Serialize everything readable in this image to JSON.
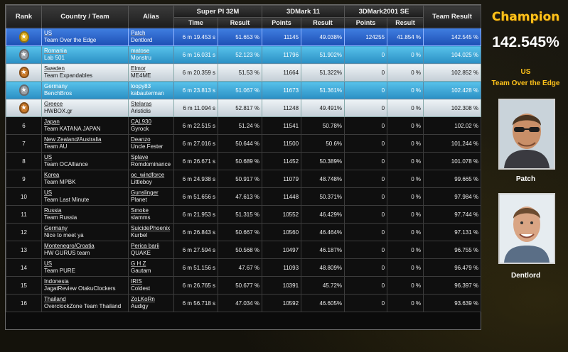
{
  "headers": {
    "rank": "Rank",
    "country_team": "Country / Team",
    "alias": "Alias",
    "superpi": "Super PI 32M",
    "mark11": "3DMark 11",
    "mark2001": "3DMark2001 SE",
    "team_result": "Team Result",
    "sub": {
      "time": "Time",
      "result": "Result",
      "points": "Points",
      "result2": "Result",
      "points2": "Points",
      "result3": "Result"
    }
  },
  "rows": [
    {
      "rank": "",
      "medal": "gold",
      "country": "US",
      "team": "Team Over the Edge",
      "alias1": "Patch",
      "alias2": "Dentlord",
      "time": "6 m 19.453 s",
      "spi_result": "51.653 %",
      "m11_points": "11145",
      "m11_result": "49.038%",
      "m01_points": "124255",
      "m01_result": "41.854 %",
      "team_result": "142.545 %"
    },
    {
      "rank": "",
      "medal": "silver",
      "country": "Romania",
      "team": "Lab 501",
      "alias1": "matose",
      "alias2": "Monstru",
      "time": "6 m 16.031 s",
      "spi_result": "52.123 %",
      "m11_points": "11796",
      "m11_result": "51.902%",
      "m01_points": "0",
      "m01_result": "0 %",
      "team_result": "104.025 %"
    },
    {
      "rank": "",
      "medal": "bronze",
      "country": "Sweden",
      "team": "Team Expandables",
      "alias1": "Elmor",
      "alias2": "ME4ME",
      "time": "6 m 20.359 s",
      "spi_result": "51.53 %",
      "m11_points": "11664",
      "m11_result": "51.322%",
      "m01_points": "0",
      "m01_result": "0 %",
      "team_result": "102.852 %"
    },
    {
      "rank": "",
      "medal": "silver",
      "country": "Germany",
      "team": "BenchBros",
      "alias1": "loopy83",
      "alias2": "kabauterman",
      "time": "6 m 23.813 s",
      "spi_result": "51.067 %",
      "m11_points": "11673",
      "m11_result": "51.361%",
      "m01_points": "0",
      "m01_result": "0 %",
      "team_result": "102.428 %"
    },
    {
      "rank": "",
      "medal": "bronze",
      "country": "Greece",
      "team": "HWBOX.gr",
      "alias1": "Stelaras",
      "alias2": "Aristidis",
      "time": "6 m 11.094 s",
      "spi_result": "52.817 %",
      "m11_points": "11248",
      "m11_result": "49.491%",
      "m01_points": "0",
      "m01_result": "0 %",
      "team_result": "102.308 %"
    },
    {
      "rank": "6",
      "medal": "",
      "country": "Japan",
      "team": "Team KATANA JAPAN",
      "alias1": "CAL930",
      "alias2": "Gyrock",
      "time": "6 m 22.515 s",
      "spi_result": "51.24 %",
      "m11_points": "11541",
      "m11_result": "50.78%",
      "m01_points": "0",
      "m01_result": "0 %",
      "team_result": "102.02 %"
    },
    {
      "rank": "7",
      "medal": "",
      "country": "New Zealand/Australia",
      "team": "Team AU",
      "alias1": "Deanzo",
      "alias2": "Uncle.Fester",
      "time": "6 m 27.016 s",
      "spi_result": "50.644 %",
      "m11_points": "11500",
      "m11_result": "50.6%",
      "m01_points": "0",
      "m01_result": "0 %",
      "team_result": "101.244 %"
    },
    {
      "rank": "8",
      "medal": "",
      "country": "US",
      "team": "Team OCAlliance",
      "alias1": "Splave",
      "alias2": "Romdominance",
      "time": "6 m 26.671 s",
      "spi_result": "50.689 %",
      "m11_points": "11452",
      "m11_result": "50.389%",
      "m01_points": "0",
      "m01_result": "0 %",
      "team_result": "101.078 %"
    },
    {
      "rank": "9",
      "medal": "",
      "country": "Korea",
      "team": "Team MPBK",
      "alias1": "oc_windforce",
      "alias2": "Littleboy",
      "time": "6 m 24.938 s",
      "spi_result": "50.917 %",
      "m11_points": "11079",
      "m11_result": "48.748%",
      "m01_points": "0",
      "m01_result": "0 %",
      "team_result": "99.665 %"
    },
    {
      "rank": "10",
      "medal": "",
      "country": "US",
      "team": "Team Last Minute",
      "alias1": "Gunslinger",
      "alias2": "Planet",
      "time": "6 m 51.656 s",
      "spi_result": "47.613 %",
      "m11_points": "11448",
      "m11_result": "50.371%",
      "m01_points": "0",
      "m01_result": "0 %",
      "team_result": "97.984 %"
    },
    {
      "rank": "11",
      "medal": "",
      "country": "Russia",
      "team": "Team Russia",
      "alias1": "Smoke",
      "alias2": "slamms",
      "time": "6 m 21.953 s",
      "spi_result": "51.315 %",
      "m11_points": "10552",
      "m11_result": "46.429%",
      "m01_points": "0",
      "m01_result": "0 %",
      "team_result": "97.744 %"
    },
    {
      "rank": "12",
      "medal": "",
      "country": "Germany",
      "team": "Nice to meet ya",
      "alias1": "SuicidePhoenix",
      "alias2": "Kurbel",
      "time": "6 m 26.843 s",
      "spi_result": "50.667 %",
      "m11_points": "10560",
      "m11_result": "46.464%",
      "m01_points": "0",
      "m01_result": "0 %",
      "team_result": "97.131 %"
    },
    {
      "rank": "13",
      "medal": "",
      "country": "Montenegro/Croatia",
      "team": "HW GURUS team",
      "alias1": "Perica barii",
      "alias2": "QUAKE",
      "time": "6 m 27.594 s",
      "spi_result": "50.568 %",
      "m11_points": "10497",
      "m11_result": "46.187%",
      "m01_points": "0",
      "m01_result": "0 %",
      "team_result": "96.755 %"
    },
    {
      "rank": "14",
      "medal": "",
      "country": "US",
      "team": "Team PURE",
      "alias1": "G H Z",
      "alias2": "Gautam",
      "time": "6 m 51.156 s",
      "spi_result": "47.67 %",
      "m11_points": "11093",
      "m11_result": "48.809%",
      "m01_points": "0",
      "m01_result": "0 %",
      "team_result": "96.479 %"
    },
    {
      "rank": "15",
      "medal": "",
      "country": "Indonesia",
      "team": "JagatReview OtakuClockers",
      "alias1": "IRIS",
      "alias2": "Coldest",
      "time": "6 m 26.765 s",
      "spi_result": "50.677 %",
      "m11_points": "10391",
      "m11_result": "45.72%",
      "m01_points": "0",
      "m01_result": "0 %",
      "team_result": "96.397 %"
    },
    {
      "rank": "16",
      "medal": "",
      "country": "Thailand",
      "team": "OverclockZone Team Thailand",
      "alias1": "ZoLKoRn",
      "alias2": "Audigy",
      "time": "6 m 56.718 s",
      "spi_result": "47.034 %",
      "m11_points": "10592",
      "m11_result": "46.605%",
      "m01_points": "0",
      "m01_result": "0 %",
      "team_result": "93.639 %"
    }
  ],
  "champion": {
    "title": "Champion",
    "score": "142.545%",
    "country": "US",
    "team": "Team Over the Edge",
    "member1": "Patch",
    "member2": "Dentlord"
  }
}
